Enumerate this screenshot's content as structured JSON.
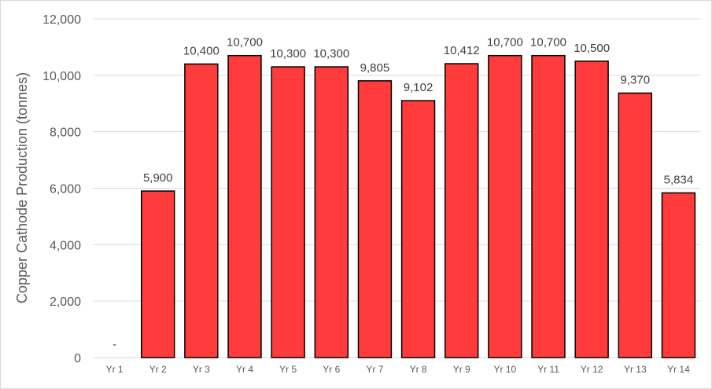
{
  "chart_data": {
    "type": "bar",
    "categories": [
      "Yr 1",
      "Yr 2",
      "Yr 3",
      "Yr 4",
      "Yr 5",
      "Yr 6",
      "Yr 7",
      "Yr 8",
      "Yr 9",
      "Yr 10",
      "Yr 11",
      "Yr 12",
      "Yr 13",
      "Yr 14"
    ],
    "values": [
      0,
      5900,
      10400,
      10700,
      10300,
      10300,
      9805,
      9102,
      10412,
      10700,
      10700,
      10500,
      9370,
      5834
    ],
    "data_labels": [
      "-",
      "5,900",
      "10,400",
      "10,700",
      "10,300",
      "10,300",
      "9,805",
      "9,102",
      "10,412",
      "10,700",
      "10,700",
      "10,500",
      "9,370",
      "5,834"
    ],
    "title": "",
    "xlabel": "",
    "ylabel": "Copper Cathode Production (tonnes)",
    "ylim": [
      0,
      12000
    ],
    "yticks": [
      0,
      2000,
      4000,
      6000,
      8000,
      10000,
      12000
    ],
    "ytick_labels": [
      "0",
      "2,000",
      "4,000",
      "6,000",
      "8,000",
      "10,000",
      "12,000"
    ],
    "grid": true,
    "legend": "none",
    "bar_color": "#ff3b3b",
    "bar_edge_color": "#000000"
  }
}
